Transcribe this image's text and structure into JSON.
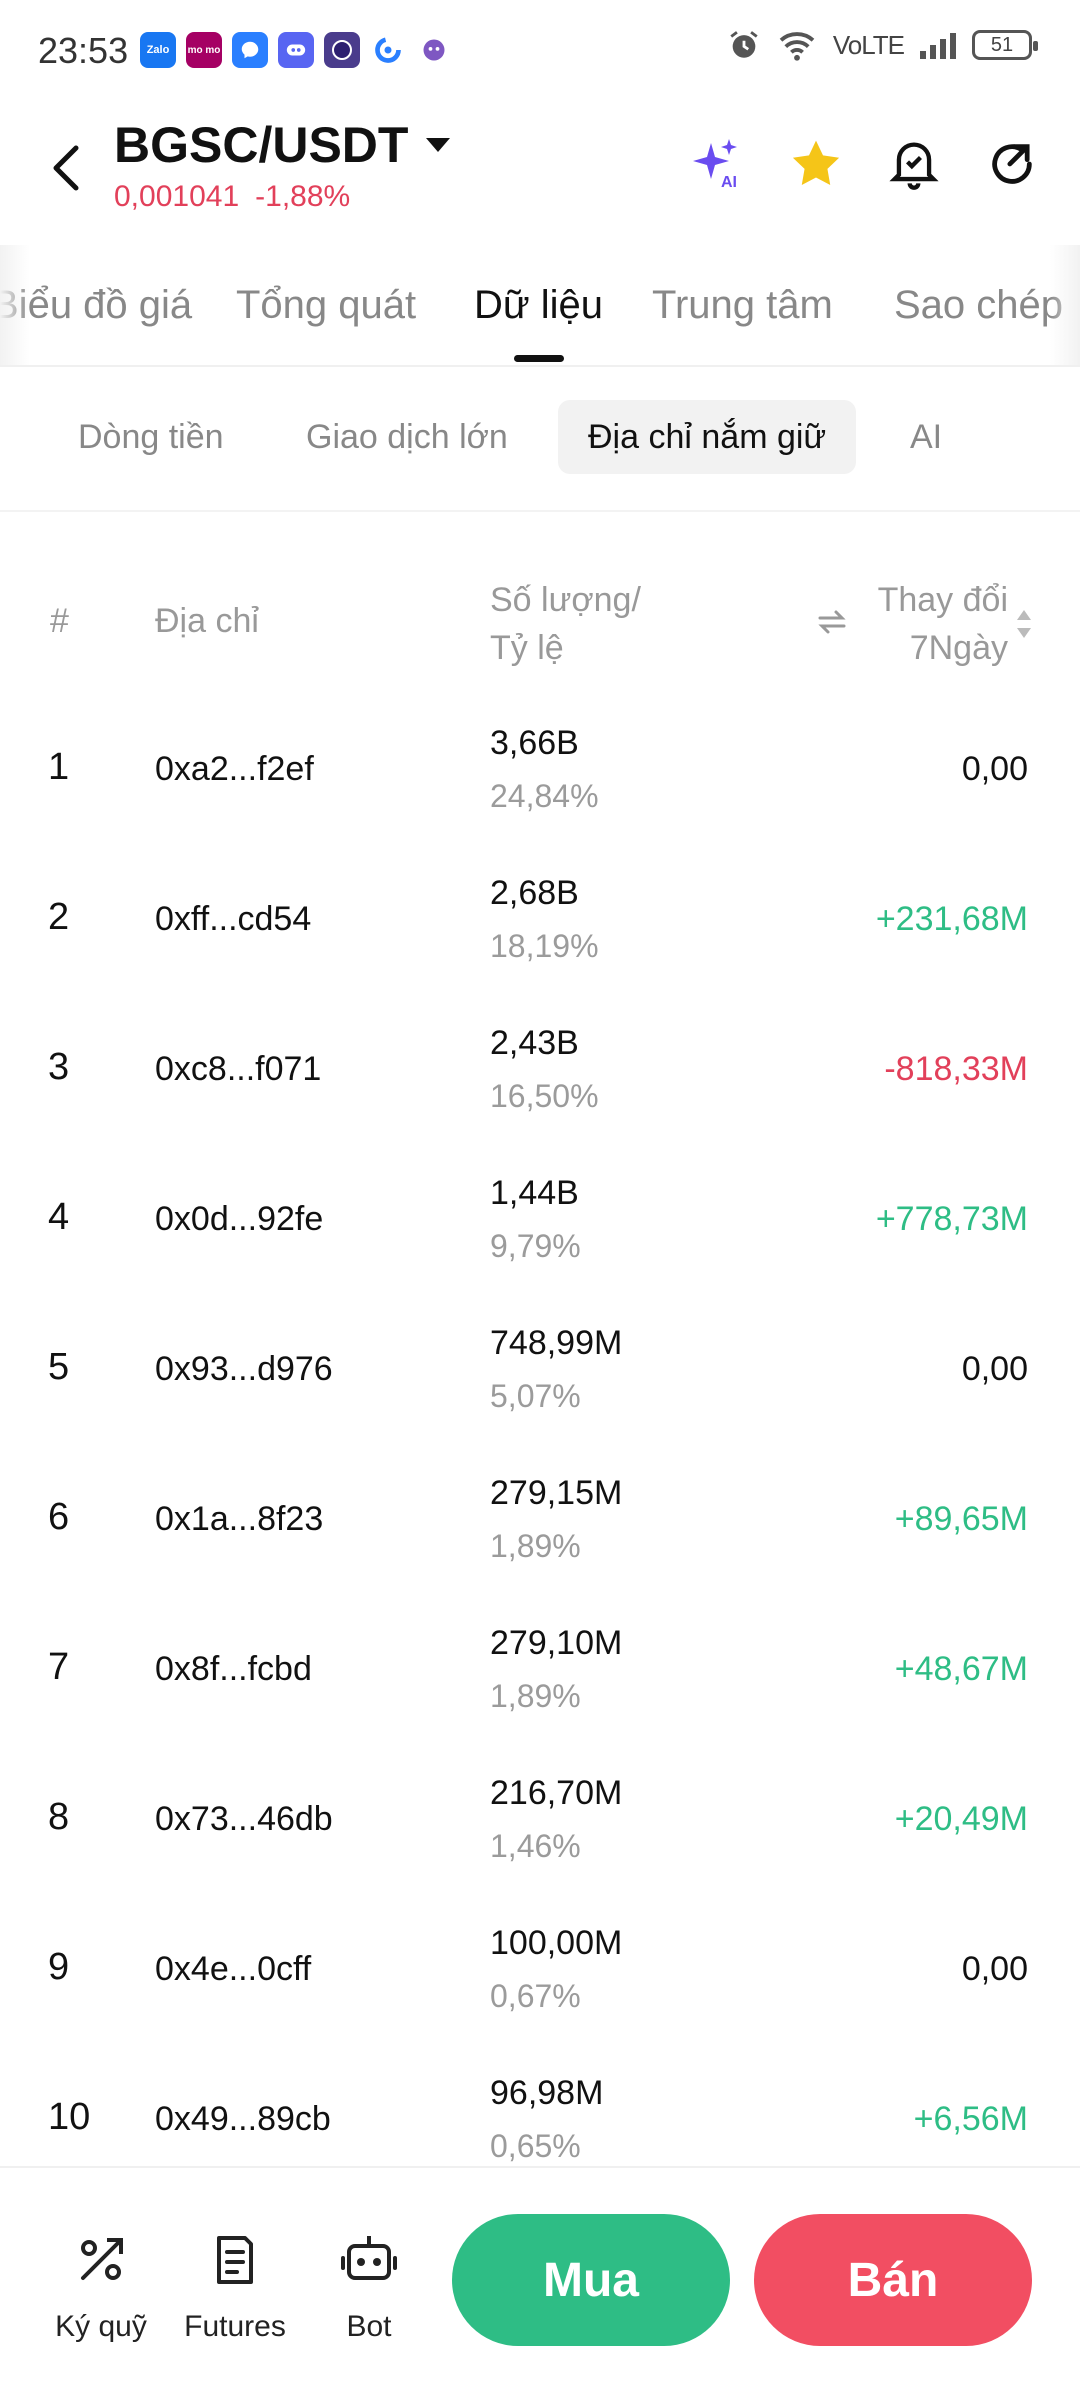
{
  "status_bar": {
    "time": "23:53",
    "network": "VoLTE",
    "battery": "51",
    "apps": [
      {
        "name": "zalo-icon",
        "label": "Zalo",
        "color": "#1877f2"
      },
      {
        "name": "momo-icon",
        "label": "mo mo",
        "color": "#a50064"
      },
      {
        "name": "messenger-icon",
        "label": "",
        "color": "#2a7fff"
      },
      {
        "name": "discord-icon",
        "label": "",
        "color": "#5865f2"
      },
      {
        "name": "app-icon",
        "label": "",
        "color": "#4a3c8c"
      },
      {
        "name": "chrome-icon",
        "label": "",
        "color": "#ffffff"
      },
      {
        "name": "bot-icon",
        "label": "",
        "color": "#7e57c2"
      }
    ]
  },
  "header": {
    "pair": "BGSC/USDT",
    "price": "0,001041",
    "change": "-1,88%",
    "icons": [
      "ai-sparkle-icon",
      "star-icon",
      "price-alert-icon",
      "share-icon"
    ]
  },
  "main_tabs": [
    {
      "label": "Biểu đồ giá",
      "active": false
    },
    {
      "label": "Tổng quát",
      "active": false
    },
    {
      "label": "Dữ liệu",
      "active": true
    },
    {
      "label": "Trung tâm",
      "active": false
    },
    {
      "label": "Sao chép",
      "active": false
    }
  ],
  "sub_tabs": [
    {
      "label": "Dòng tiền",
      "active": false
    },
    {
      "label": "Giao dịch lớn",
      "active": false
    },
    {
      "label": "Địa chỉ nắm giữ",
      "active": true
    },
    {
      "label": "AI",
      "active": false
    }
  ],
  "table": {
    "headers": {
      "rank": "#",
      "address": "Địa chỉ",
      "qty_line1": "Số lượng/",
      "qty_line2": "Tỷ lệ",
      "change_line1": "Thay đổi",
      "change_line2": "7Ngày"
    },
    "rows": [
      {
        "rank": "1",
        "address": "0xa2...f2ef",
        "qty": "3,66B",
        "pct": "24,84%",
        "change": "0,00",
        "dir": "zero"
      },
      {
        "rank": "2",
        "address": "0xff...cd54",
        "qty": "2,68B",
        "pct": "18,19%",
        "change": "+231,68M",
        "dir": "pos"
      },
      {
        "rank": "3",
        "address": "0xc8...f071",
        "qty": "2,43B",
        "pct": "16,50%",
        "change": "-818,33M",
        "dir": "neg"
      },
      {
        "rank": "4",
        "address": "0x0d...92fe",
        "qty": "1,44B",
        "pct": "9,79%",
        "change": "+778,73M",
        "dir": "pos"
      },
      {
        "rank": "5",
        "address": "0x93...d976",
        "qty": "748,99M",
        "pct": "5,07%",
        "change": "0,00",
        "dir": "zero"
      },
      {
        "rank": "6",
        "address": "0x1a...8f23",
        "qty": "279,15M",
        "pct": "1,89%",
        "change": "+89,65M",
        "dir": "pos"
      },
      {
        "rank": "7",
        "address": "0x8f...fcbd",
        "qty": "279,10M",
        "pct": "1,89%",
        "change": "+48,67M",
        "dir": "pos"
      },
      {
        "rank": "8",
        "address": "0x73...46db",
        "qty": "216,70M",
        "pct": "1,46%",
        "change": "+20,49M",
        "dir": "pos"
      },
      {
        "rank": "9",
        "address": "0x4e...0cff",
        "qty": "100,00M",
        "pct": "0,67%",
        "change": "0,00",
        "dir": "zero"
      },
      {
        "rank": "10",
        "address": "0x49...89cb",
        "qty": "96,98M",
        "pct": "0,65%",
        "change": "+6,56M",
        "dir": "pos"
      }
    ]
  },
  "bottom_bar": {
    "margin_label": "Ký quỹ",
    "futures_label": "Futures",
    "bot_label": "Bot",
    "buy_label": "Mua",
    "sell_label": "Bán"
  },
  "colors": {
    "positive": "#2ebd85",
    "negative": "#e2405a",
    "buy": "#2ebd85",
    "sell": "#f24e62",
    "star": "#f5c518"
  }
}
